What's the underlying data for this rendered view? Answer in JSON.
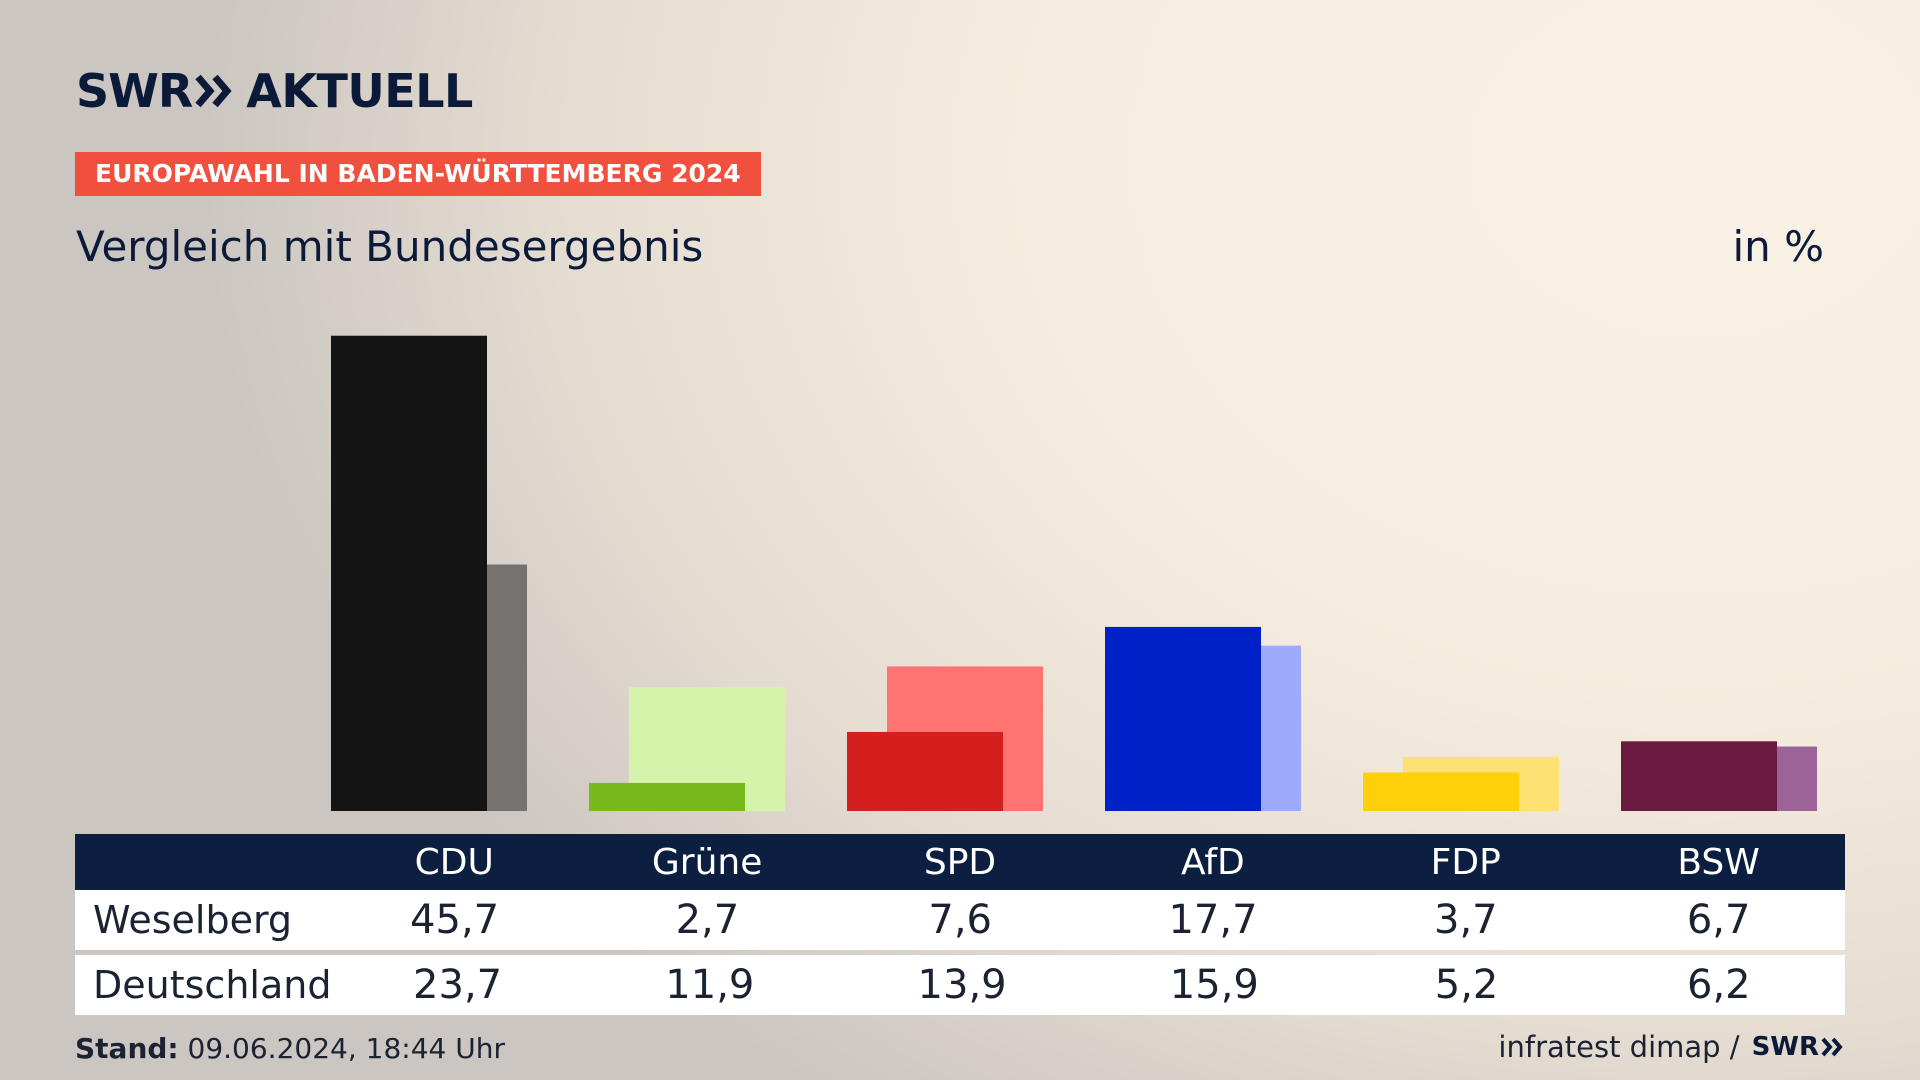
{
  "header": {
    "logo_swr": "SWR",
    "logo_aktuell": "AKTUELL",
    "badge": "EUROPAWAHL IN BADEN-WÜRTTEMBERG 2024",
    "subtitle": "Vergleich mit Bundesergebnis",
    "unit": "in %"
  },
  "colors": {
    "brand_navy": "#0c1a3a",
    "badge_red": "#f2503f",
    "table_header": "#0c1f41"
  },
  "table": {
    "row1_label": "Weselberg",
    "row2_label": "Deutschland"
  },
  "chart_data": {
    "type": "bar",
    "categories": [
      "CDU",
      "Grüne",
      "SPD",
      "AfD",
      "FDP",
      "BSW"
    ],
    "series": [
      {
        "name": "Weselberg",
        "values": [
          45.7,
          2.7,
          7.6,
          17.7,
          3.7,
          6.7
        ],
        "colors": [
          "#141414",
          "#7ab91e",
          "#d51f1f",
          "#0020c8",
          "#ffcf0a",
          "#6b1a3f"
        ]
      },
      {
        "name": "Deutschland",
        "values": [
          23.7,
          11.9,
          13.9,
          15.9,
          5.2,
          6.2
        ],
        "colors": [
          "#757270",
          "#d6f3ac",
          "#ff7470",
          "#9eaafc",
          "#fde173",
          "#9c6399"
        ]
      }
    ],
    "ylim": [
      0,
      47
    ],
    "xlabel": "",
    "ylabel": "",
    "grid": false
  },
  "footer": {
    "stand_label": "Stand:",
    "stand_value": " 09.06.2024, 18:44 Uhr",
    "source": "infratest dimap /",
    "source_logo": "SWR"
  }
}
